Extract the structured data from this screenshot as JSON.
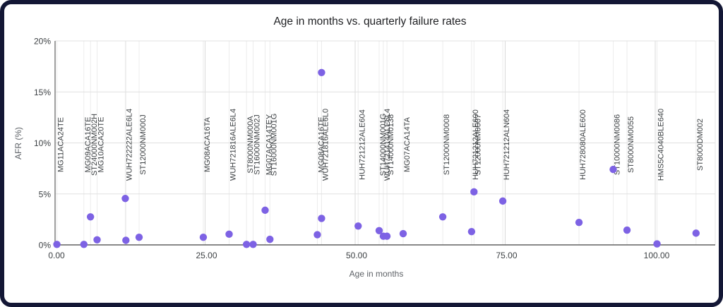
{
  "window": {
    "frame_color": "#131735",
    "background": "#ffffff"
  },
  "chart_data": {
    "type": "scatter",
    "title": "Age in months vs. quarterly failure rates",
    "xlabel": "Age in months",
    "ylabel": "AFR (%)",
    "xlim": [
      0,
      110
    ],
    "ylim": [
      0,
      20
    ],
    "grid": true,
    "legend": "none",
    "point_color": "#7d62e4",
    "x_ticks": [
      {
        "value": 0,
        "label": "0.00"
      },
      {
        "value": 25,
        "label": "25.00"
      },
      {
        "value": 50,
        "label": "50.00"
      },
      {
        "value": 75,
        "label": "75.00"
      },
      {
        "value": 100,
        "label": "100.00"
      }
    ],
    "y_ticks": [
      {
        "value": 0,
        "label": "0%"
      },
      {
        "value": 5,
        "label": "5%"
      },
      {
        "value": 10,
        "label": "10%"
      },
      {
        "value": 15,
        "label": "15%"
      },
      {
        "value": 20,
        "label": "20%"
      }
    ],
    "points": [
      {
        "model": "MG11ACA24TE",
        "age_months": 0.3,
        "afr_pct": 0.05
      },
      {
        "model": "MG09ACA16TE",
        "age_months": 4.8,
        "afr_pct": 0.05
      },
      {
        "model": "ST24000NM002H",
        "age_months": 5.9,
        "afr_pct": 2.75
      },
      {
        "model": "MG10ACA20TE",
        "age_months": 7.0,
        "afr_pct": 0.5
      },
      {
        "model": "WUH722222ALE6L4",
        "age_months": 11.7,
        "afr_pct": 4.55
      },
      {
        "model": "",
        "age_months": 11.8,
        "afr_pct": 0.45
      },
      {
        "model": "ST12000NM000J",
        "age_months": 14.0,
        "afr_pct": 0.75
      },
      {
        "model": "MG08ACA16TA",
        "age_months": 24.7,
        "afr_pct": 0.75
      },
      {
        "model": "WUH721816ALE6L4",
        "age_months": 29.0,
        "afr_pct": 1.05
      },
      {
        "model": "ST8000NM000A",
        "age_months": 31.9,
        "afr_pct": 0.05
      },
      {
        "model": "ST16000NM002J",
        "age_months": 33.0,
        "afr_pct": 0.05
      },
      {
        "model": "MG07ACA14TEY",
        "age_months": 35.0,
        "afr_pct": 3.4
      },
      {
        "model": "ST16000NM001G",
        "age_months": 35.8,
        "afr_pct": 0.55
      },
      {
        "model": "MG08ACA16TE",
        "age_months": 43.7,
        "afr_pct": 1.0
      },
      {
        "model": "WUH721816ALE6L0",
        "age_months": 44.4,
        "afr_pct": 2.6
      },
      {
        "model": "",
        "age_months": 44.4,
        "afr_pct": 16.9
      },
      {
        "model": "HUH721212ALE604",
        "age_months": 50.5,
        "afr_pct": 1.85
      },
      {
        "model": "ST14000NM001G",
        "age_months": 54.0,
        "afr_pct": 1.4
      },
      {
        "model": "WUH721414ALE6L4",
        "age_months": 54.7,
        "afr_pct": 0.85
      },
      {
        "model": "ST14000NM0138",
        "age_months": 55.3,
        "afr_pct": 0.85
      },
      {
        "model": "MG07ACA14TA",
        "age_months": 58.0,
        "afr_pct": 1.1
      },
      {
        "model": "ST12000NM0008",
        "age_months": 64.6,
        "afr_pct": 2.75
      },
      {
        "model": "HUH721212ALE600",
        "age_months": 69.4,
        "afr_pct": 1.3
      },
      {
        "model": "ST12000NM0007",
        "age_months": 69.8,
        "afr_pct": 5.2
      },
      {
        "model": "HUH721212ALN604",
        "age_months": 74.6,
        "afr_pct": 4.3
      },
      {
        "model": "HUH728080ALE600",
        "age_months": 87.3,
        "afr_pct": 2.2
      },
      {
        "model": "ST10000NM0086",
        "age_months": 93.0,
        "afr_pct": 7.4
      },
      {
        "model": "ST8000NM0055",
        "age_months": 95.3,
        "afr_pct": 1.45
      },
      {
        "model": "HMS5C4040BLE640",
        "age_months": 100.3,
        "afr_pct": 0.1
      },
      {
        "model": "ST8000DM002",
        "age_months": 106.8,
        "afr_pct": 1.15
      }
    ]
  }
}
